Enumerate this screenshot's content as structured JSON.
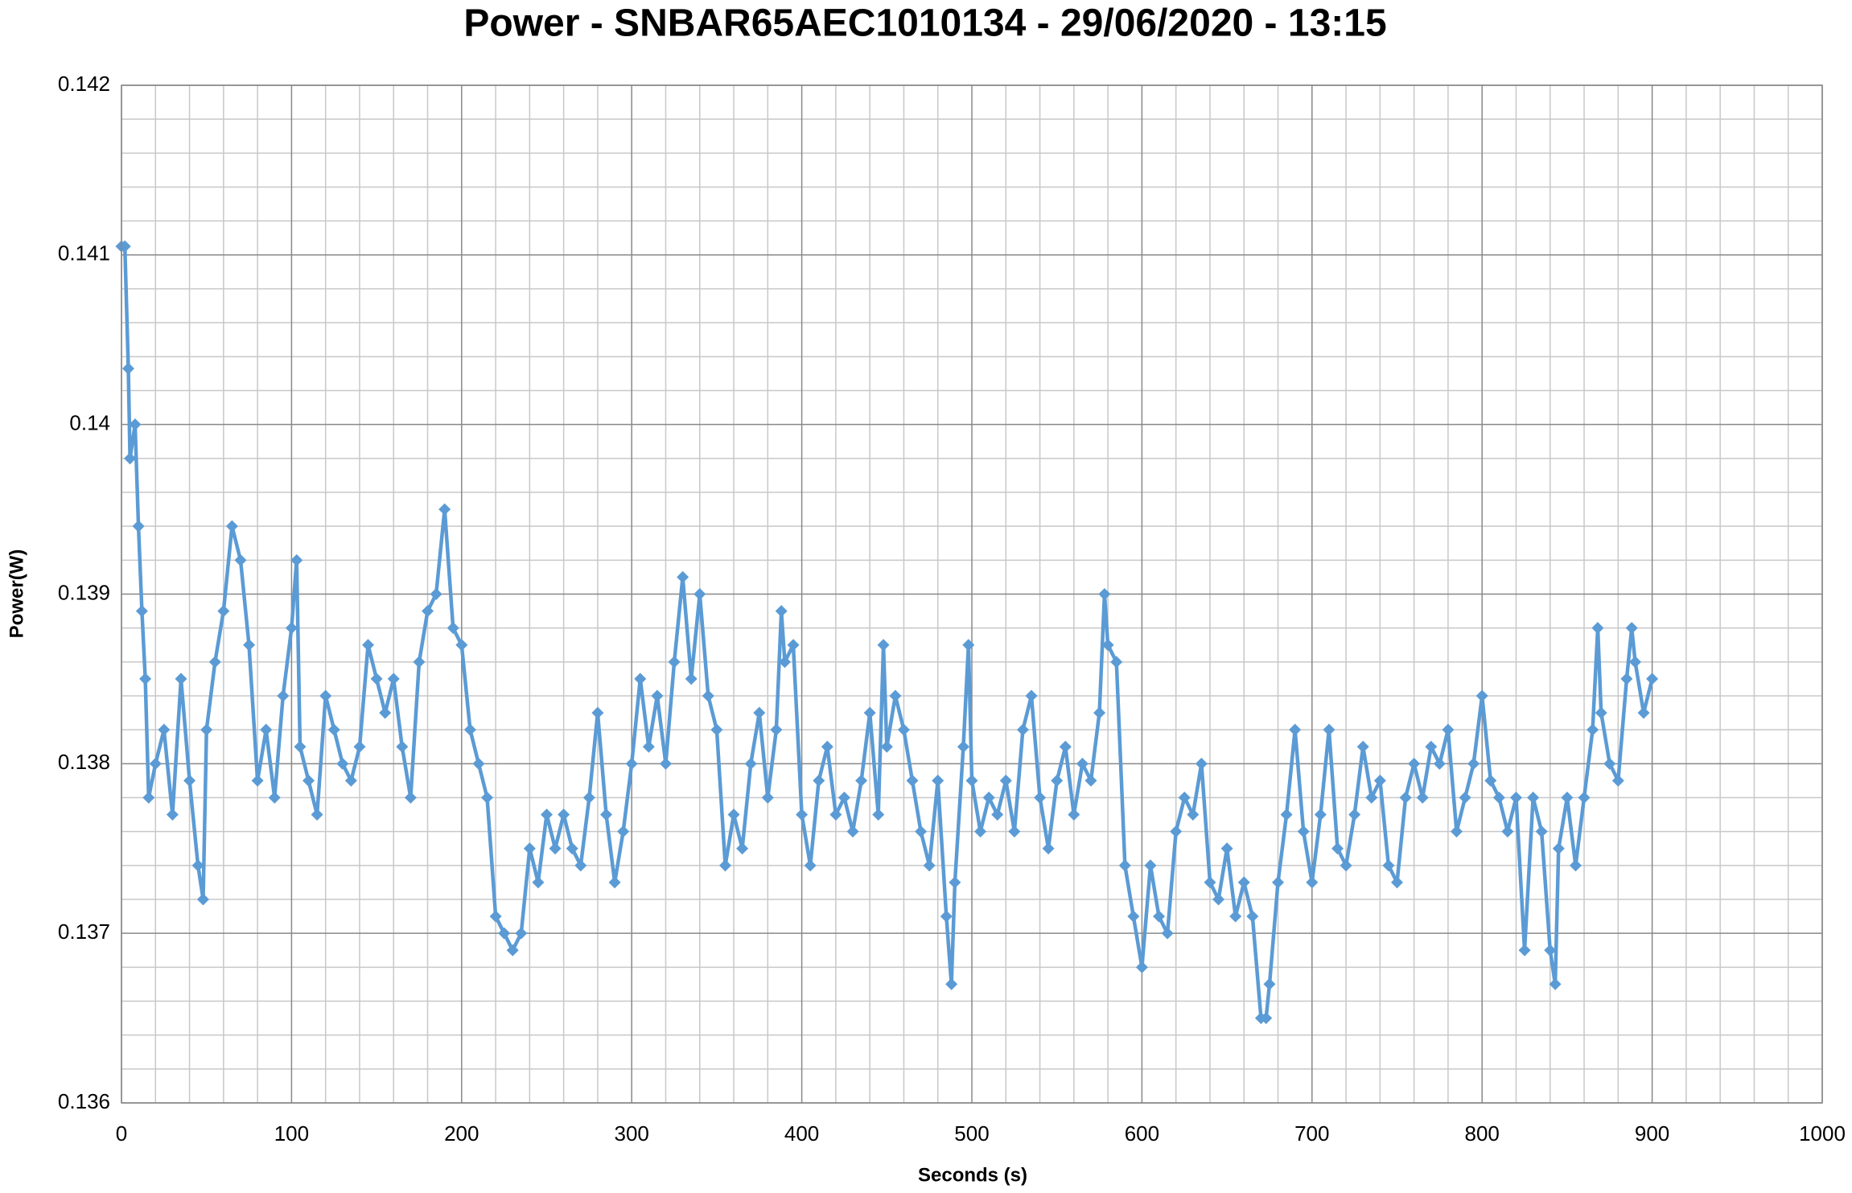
{
  "chart_data": {
    "type": "line",
    "title": "Power - SNBAR65AEC1010134 - 29/06/2020 - 13:15",
    "x_label": "Seconds (s)",
    "y_label": "Power(W)",
    "color": "#5b9bd5",
    "marker": "diamond",
    "grid": true,
    "xlim": [
      0,
      1000
    ],
    "xticks": [
      0,
      100,
      200,
      300,
      400,
      500,
      600,
      700,
      800,
      900,
      1000
    ],
    "ylim": [
      0.136,
      0.142
    ],
    "yticks": [
      0.136,
      0.137,
      0.138,
      0.139,
      0.14,
      0.141,
      0.142
    ],
    "x": [
      0,
      2,
      4,
      5,
      8,
      10,
      12,
      14,
      16,
      20,
      25,
      30,
      35,
      40,
      45,
      48,
      50,
      55,
      60,
      65,
      70,
      75,
      80,
      85,
      90,
      95,
      100,
      103,
      105,
      110,
      115,
      120,
      125,
      130,
      135,
      140,
      145,
      150,
      155,
      160,
      165,
      170,
      175,
      180,
      185,
      190,
      195,
      200,
      205,
      210,
      215,
      220,
      225,
      230,
      235,
      240,
      245,
      250,
      255,
      260,
      265,
      270,
      275,
      280,
      285,
      290,
      295,
      300,
      305,
      310,
      315,
      320,
      325,
      330,
      335,
      340,
      345,
      350,
      355,
      360,
      365,
      370,
      375,
      380,
      385,
      388,
      390,
      395,
      400,
      405,
      410,
      415,
      420,
      425,
      430,
      435,
      440,
      445,
      448,
      450,
      455,
      460,
      465,
      470,
      475,
      480,
      485,
      488,
      490,
      495,
      498,
      500,
      505,
      510,
      515,
      520,
      525,
      530,
      535,
      540,
      545,
      550,
      555,
      560,
      565,
      570,
      575,
      578,
      580,
      585,
      590,
      595,
      600,
      605,
      610,
      615,
      620,
      625,
      630,
      635,
      640,
      645,
      650,
      655,
      660,
      665,
      670,
      673,
      675,
      680,
      685,
      690,
      695,
      700,
      705,
      710,
      715,
      720,
      725,
      730,
      735,
      740,
      745,
      750,
      755,
      760,
      765,
      770,
      775,
      780,
      785,
      790,
      795,
      800,
      805,
      810,
      815,
      820,
      825,
      830,
      835,
      840,
      843,
      845,
      850,
      855,
      860,
      865,
      868,
      870,
      875,
      880,
      885,
      888,
      890,
      895,
      900
    ],
    "values": [
      0.14105,
      0.14105,
      0.14033,
      0.1398,
      0.14,
      0.1394,
      0.1389,
      0.1385,
      0.1378,
      0.138,
      0.1382,
      0.1377,
      0.1385,
      0.1379,
      0.1374,
      0.1372,
      0.1382,
      0.1386,
      0.1389,
      0.1394,
      0.1392,
      0.1387,
      0.1379,
      0.1382,
      0.1378,
      0.1384,
      0.1388,
      0.1392,
      0.1381,
      0.1379,
      0.1377,
      0.1384,
      0.1382,
      0.138,
      0.1379,
      0.1381,
      0.1387,
      0.1385,
      0.1383,
      0.1385,
      0.1381,
      0.1378,
      0.1386,
      0.1389,
      0.139,
      0.1395,
      0.1388,
      0.1387,
      0.1382,
      0.138,
      0.1378,
      0.1371,
      0.137,
      0.1369,
      0.137,
      0.1375,
      0.1373,
      0.1377,
      0.1375,
      0.1377,
      0.1375,
      0.1374,
      0.1378,
      0.1383,
      0.1377,
      0.1373,
      0.1376,
      0.138,
      0.1385,
      0.1381,
      0.1384,
      0.138,
      0.1386,
      0.1391,
      0.1385,
      0.139,
      0.1384,
      0.1382,
      0.1374,
      0.1377,
      0.1375,
      0.138,
      0.1383,
      0.1378,
      0.1382,
      0.1389,
      0.1386,
      0.1387,
      0.1377,
      0.1374,
      0.1379,
      0.1381,
      0.1377,
      0.1378,
      0.1376,
      0.1379,
      0.1383,
      0.1377,
      0.1387,
      0.1381,
      0.1384,
      0.1382,
      0.1379,
      0.1376,
      0.1374,
      0.1379,
      0.1371,
      0.1367,
      0.1373,
      0.1381,
      0.1387,
      0.1379,
      0.1376,
      0.1378,
      0.1377,
      0.1379,
      0.1376,
      0.1382,
      0.1384,
      0.1378,
      0.1375,
      0.1379,
      0.1381,
      0.1377,
      0.138,
      0.1379,
      0.1383,
      0.139,
      0.1387,
      0.1386,
      0.1374,
      0.1371,
      0.1368,
      0.1374,
      0.1371,
      0.137,
      0.1376,
      0.1378,
      0.1377,
      0.138,
      0.1373,
      0.1372,
      0.1375,
      0.1371,
      0.1373,
      0.1371,
      0.1365,
      0.1365,
      0.1367,
      0.1373,
      0.1377,
      0.1382,
      0.1376,
      0.1373,
      0.1377,
      0.1382,
      0.1375,
      0.1374,
      0.1377,
      0.1381,
      0.1378,
      0.1379,
      0.1374,
      0.1373,
      0.1378,
      0.138,
      0.1378,
      0.1381,
      0.138,
      0.1382,
      0.1376,
      0.1378,
      0.138,
      0.1384,
      0.1379,
      0.1378,
      0.1376,
      0.1378,
      0.1369,
      0.1378,
      0.1376,
      0.1369,
      0.1367,
      0.1375,
      0.1378,
      0.1374,
      0.1378,
      0.1382,
      0.1388,
      0.1383,
      0.138,
      0.1379,
      0.1385,
      0.1388,
      0.1386,
      0.1383,
      0.1385
    ]
  }
}
